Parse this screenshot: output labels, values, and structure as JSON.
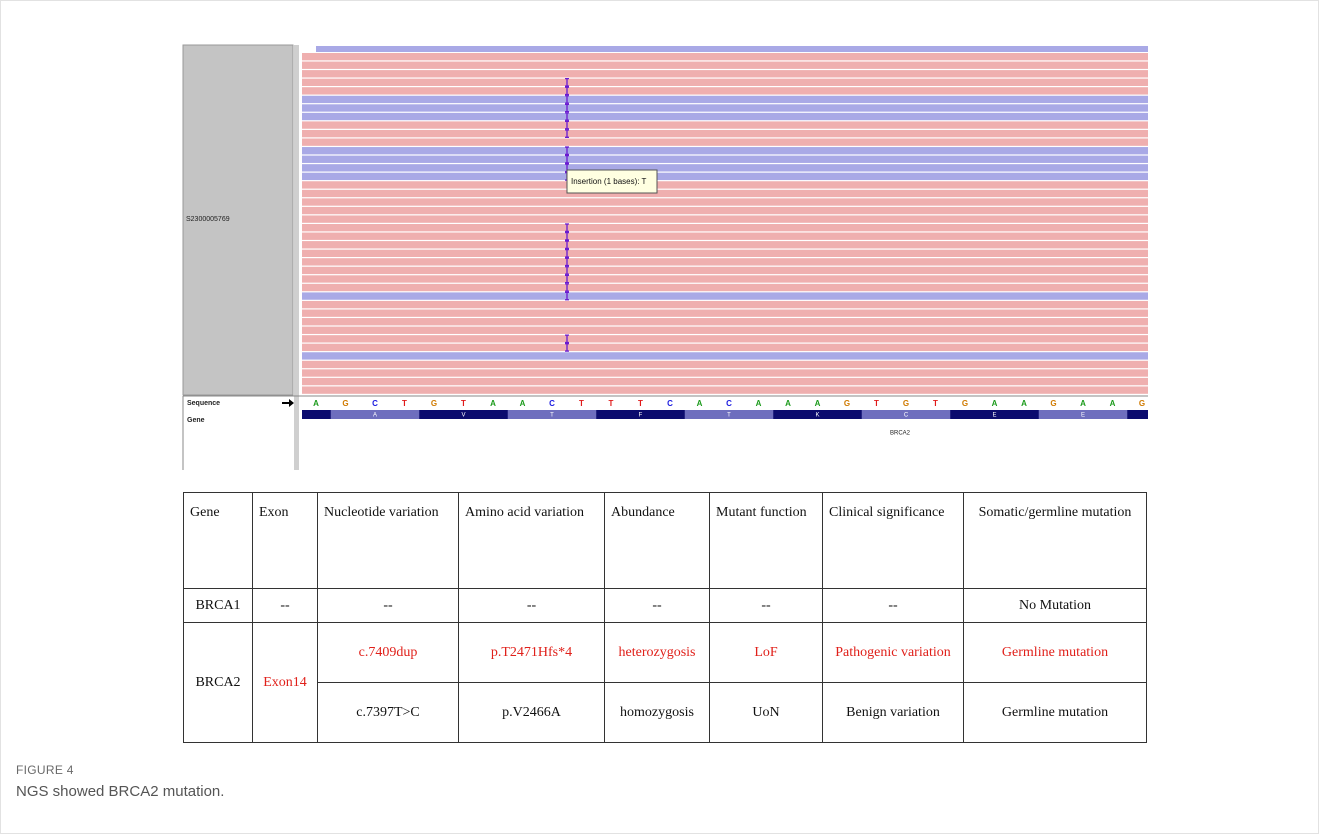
{
  "igv": {
    "sample": "S2300005769",
    "tooltip": "Insertion (1 bases): T",
    "sequence_label": "Sequence",
    "gene_label": "Gene",
    "bases": [
      "A",
      "G",
      "C",
      "T",
      "G",
      "T",
      "A",
      "A",
      "C",
      "T",
      "T",
      "T",
      "C",
      "A",
      "C",
      "A",
      "A",
      "A",
      "G",
      "T",
      "G",
      "T",
      "G",
      "A",
      "A",
      "G",
      "A",
      "A",
      "G"
    ],
    "amino_acids": [
      "A",
      "V",
      "T",
      "F",
      "T",
      "K",
      "C",
      "E",
      "E"
    ],
    "gene_name": "BRCA2"
  },
  "table": {
    "header": [
      "Gene",
      "Exon",
      "Nucleotide variation",
      "Amino acid variation",
      "Abundance",
      "Mutant function",
      "Clinical significance",
      "Somatic/germline mutation"
    ],
    "rows": [
      [
        "BRCA1",
        "--",
        "--",
        "--",
        "--",
        "--",
        "--",
        "No Mutation"
      ],
      [
        "BRCA2",
        "Exon14",
        "c.7409dup",
        "p.T2471Hfs*4",
        "heterozygosis",
        "LoF",
        "Pathogenic variation",
        "Germline mutation"
      ],
      [
        "c.7397T>C",
        "p.V2466A",
        "homozygosis",
        "UoN",
        "Benign variation",
        "Germline mutation"
      ]
    ]
  },
  "caption": {
    "label": "FIGURE 4",
    "text": "NGS showed BRCA2 mutation."
  }
}
